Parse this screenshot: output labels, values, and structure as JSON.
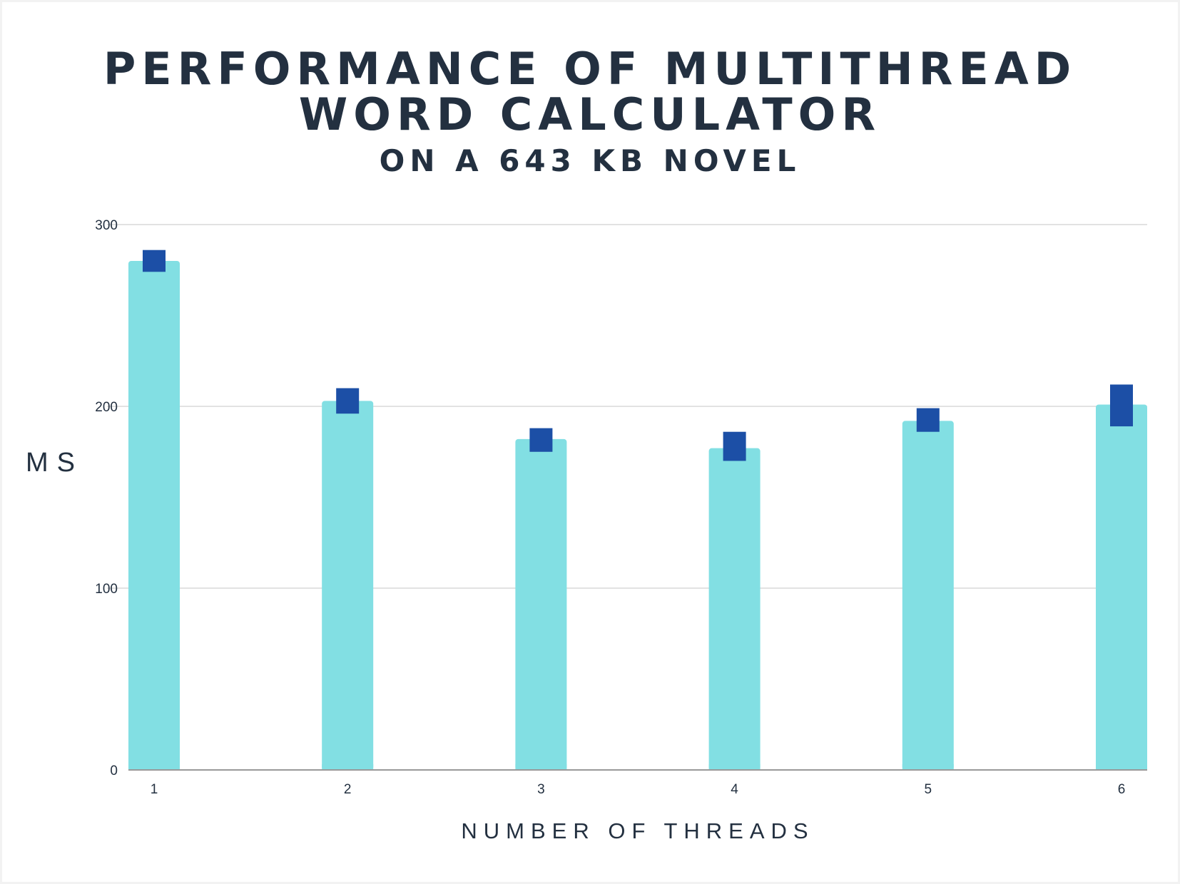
{
  "chart_data": {
    "type": "bar",
    "title_line1": "PERFORMANCE OF MULTITHREAD",
    "title_line2": "WORD CALCULATOR",
    "subtitle": "ON A 643 KB NOVEL",
    "xlabel": "NUMBER OF THREADS",
    "ylabel": "MS",
    "categories": [
      "1",
      "2",
      "3",
      "4",
      "5",
      "6"
    ],
    "values": [
      280,
      203,
      182,
      177,
      192,
      201
    ],
    "markers": [
      {
        "low": 274,
        "high": 286
      },
      {
        "low": 196,
        "high": 210
      },
      {
        "low": 175,
        "high": 188
      },
      {
        "low": 170,
        "high": 186
      },
      {
        "low": 186,
        "high": 199
      },
      {
        "low": 189,
        "high": 212
      }
    ],
    "ylim": [
      0,
      300
    ],
    "yticks": [
      0,
      100,
      200,
      300
    ],
    "grid": true,
    "colors": {
      "bar": "#82dfe3",
      "marker": "#1c4fa6",
      "grid": "#d9d9d9",
      "axis": "#999999",
      "text": "#233040"
    }
  }
}
